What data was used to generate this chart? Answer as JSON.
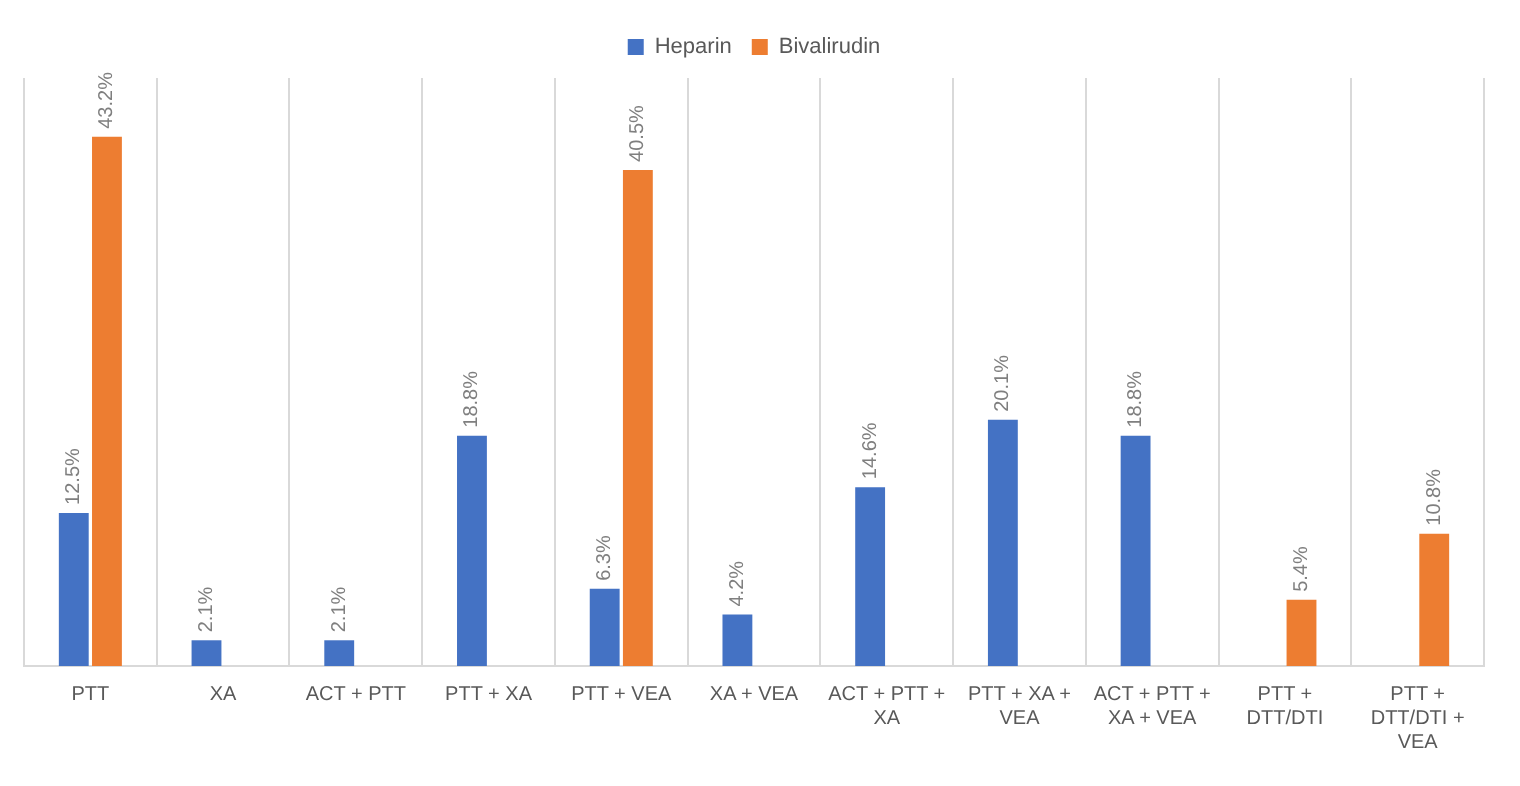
{
  "chart_data": {
    "type": "bar",
    "categories": [
      "PTT",
      "XA",
      "ACT + PTT",
      "PTT + XA",
      "PTT + VEA",
      "XA + VEA",
      "ACT + PTT + XA",
      "PTT + XA + VEA",
      "ACT + PTT + XA + VEA",
      "PTT + DTT/DTI",
      "PTT + DTT/DTI + VEA"
    ],
    "series": [
      {
        "name": "Heparin",
        "color": "#4472c4",
        "values": [
          12.5,
          2.1,
          2.1,
          18.8,
          6.3,
          4.2,
          14.6,
          20.1,
          18.8,
          null,
          null
        ],
        "value_labels": [
          "12.5%",
          "2.1%",
          "2.1%",
          "18.8%",
          "6.3%",
          "4.2%",
          "14.6%",
          "20.1%",
          "18.8%",
          null,
          null
        ]
      },
      {
        "name": "Bivalirudin",
        "color": "#ed7d31",
        "values": [
          43.2,
          null,
          null,
          null,
          40.5,
          null,
          null,
          null,
          null,
          5.4,
          10.8
        ],
        "value_labels": [
          "43.2%",
          null,
          null,
          null,
          "40.5%",
          null,
          null,
          null,
          null,
          "5.4%",
          "10.8%"
        ]
      }
    ],
    "ylim": [
      0,
      48
    ],
    "tick_labels": "x",
    "grid": "x",
    "legend": "top"
  }
}
